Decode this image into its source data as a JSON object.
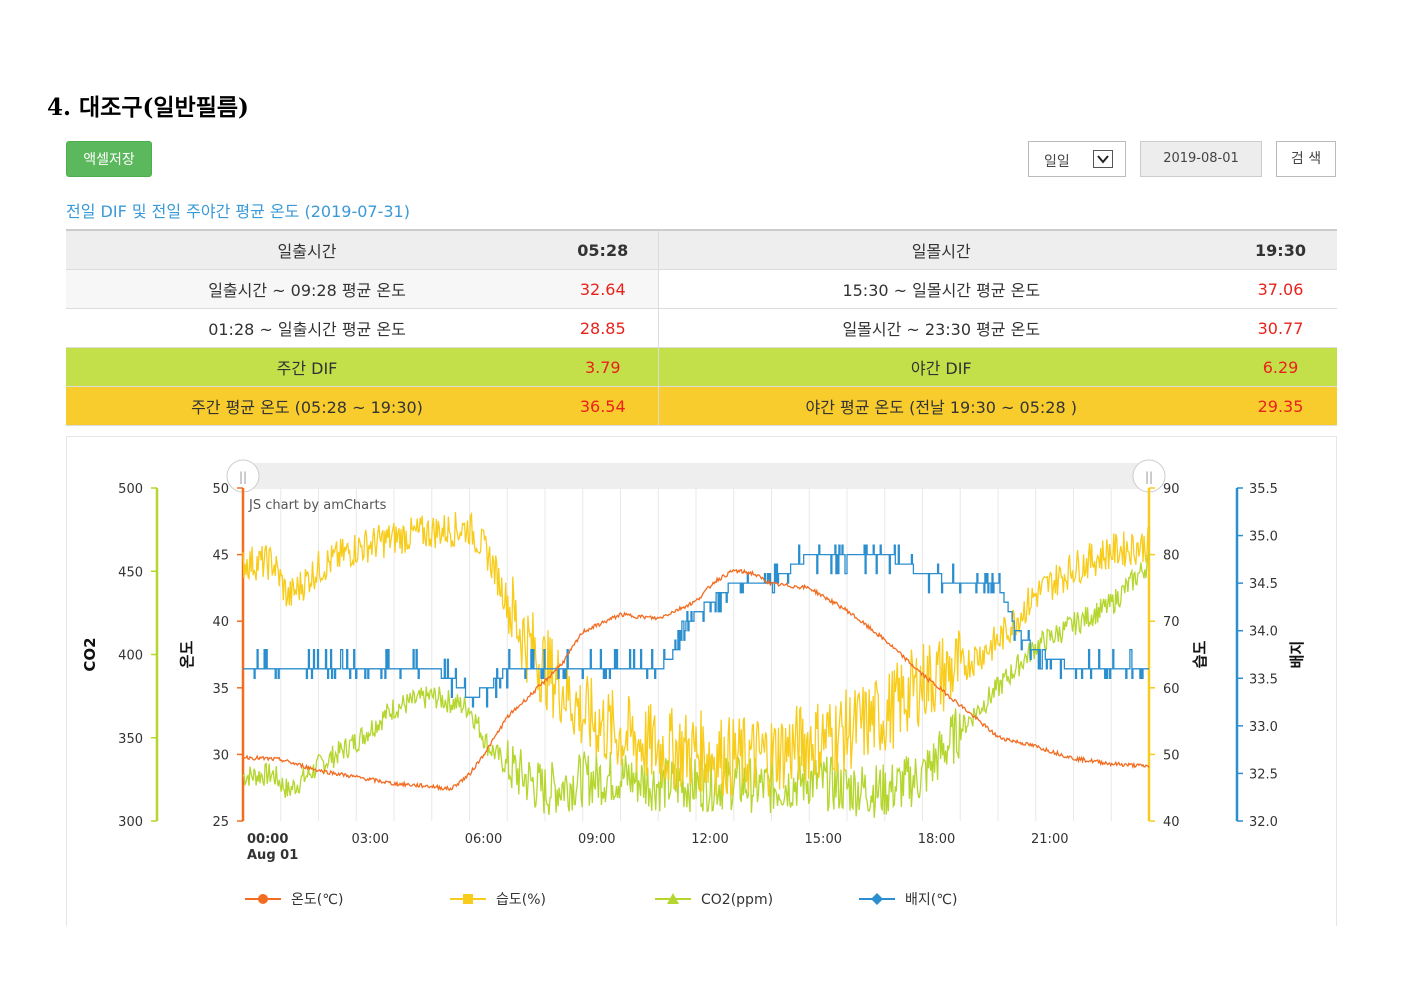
{
  "page": {
    "heading": "4.  대조구(일반필름)",
    "excel_button": "액셀저장",
    "period_select": "일일",
    "date_value": "2019-08-01",
    "search_button": "검 색"
  },
  "summary": {
    "title": "전일 DIF 및 전일 주야간 평균 온도 (2019-07-31)",
    "rows": [
      {
        "left_label": "일출시간",
        "left_value": "05:28",
        "right_label": "일몰시간",
        "right_value": "19:30"
      },
      {
        "left_label": "일출시간 ~ 09:28 평균 온도",
        "left_value": "32.64",
        "right_label": "15:30 ~ 일몰시간 평균 온도",
        "right_value": "37.06"
      },
      {
        "left_label": "01:28 ~ 일출시간 평균 온도",
        "left_value": "28.85",
        "right_label": "일몰시간 ~ 23:30 평균 온도",
        "right_value": "30.77"
      },
      {
        "left_label": "주간 DIF",
        "left_value": "3.79",
        "right_label": "야간 DIF",
        "right_value": "6.29"
      },
      {
        "left_label": "주간 평균 온도 (05:28 ~ 19:30)",
        "left_value": "36.54",
        "right_label": "야간 평균 온도 (전날 19:30 ~ 05:28 )",
        "right_value": "29.35"
      }
    ],
    "colors": {
      "header": "#eeeeee",
      "dif_row": "#c3e04a",
      "avg_row": "#f8cc2d",
      "value_text": "#e8221b"
    }
  },
  "chart_data": {
    "type": "line",
    "credit": "JS chart by amCharts",
    "x_ticks": [
      "00:00",
      "03:00",
      "06:00",
      "09:00",
      "12:00",
      "15:00",
      "18:00",
      "21:00"
    ],
    "x_first_date": "Aug 01",
    "xlim_hours": [
      0,
      24
    ],
    "axes": {
      "co2": {
        "label": "CO2",
        "range": [
          300,
          500
        ],
        "ticks": [
          300,
          350,
          400,
          450,
          500
        ],
        "color": "#b5d62e"
      },
      "temp": {
        "label": "온도",
        "range": [
          25,
          50
        ],
        "ticks": [
          25,
          30,
          35,
          40,
          45,
          50
        ],
        "color": "#f26c21"
      },
      "humidity": {
        "label": "습도",
        "range": [
          40,
          90
        ],
        "ticks": [
          40,
          50,
          60,
          70,
          80,
          90
        ],
        "color": "#f8cc1b"
      },
      "medium": {
        "label": "배지",
        "range": [
          32.0,
          35.5
        ],
        "ticks": [
          "32.0",
          "32.5",
          "33.0",
          "33.5",
          "34.0",
          "34.5",
          "35.0",
          "35.5"
        ],
        "color": "#2b8fcf"
      }
    },
    "series": [
      {
        "name": "온도(℃)",
        "axis": "temp",
        "color": "#f26c21",
        "hours": [
          0,
          1,
          2,
          3,
          4,
          5,
          5.5,
          6,
          6.5,
          7,
          8,
          8.5,
          9,
          10,
          11,
          12,
          12.5,
          13,
          13.5,
          14,
          15,
          16,
          17,
          18,
          19,
          20,
          21,
          22,
          23,
          24
        ],
        "values": [
          29.8,
          29.6,
          28.8,
          28.3,
          27.8,
          27.6,
          27.4,
          28.5,
          30.5,
          32.8,
          35.5,
          37.0,
          39.2,
          40.5,
          40.2,
          41.5,
          43.0,
          43.8,
          43.6,
          42.8,
          42.5,
          40.8,
          38.6,
          36.0,
          33.7,
          31.3,
          30.6,
          29.7,
          29.3,
          29.1
        ]
      },
      {
        "name": "습도(%)",
        "axis": "humidity",
        "color": "#f8cc1b",
        "hours": [
          0,
          0.8,
          1.2,
          2,
          3,
          4,
          5,
          6,
          6.5,
          7,
          7.5,
          8,
          8.5,
          9,
          10,
          11,
          12,
          13,
          14,
          15,
          16,
          17,
          18,
          19,
          20,
          21,
          22,
          23,
          24
        ],
        "values": [
          78.8,
          78.8,
          73.5,
          78.0,
          81.0,
          82.5,
          83.5,
          84.0,
          80.0,
          73.0,
          67.0,
          63.0,
          60.0,
          56.0,
          53.0,
          51.0,
          50.5,
          49.5,
          50.0,
          52.0,
          53.5,
          56.0,
          61.0,
          63.0,
          67.0,
          74.0,
          78.0,
          80.5,
          81.5
        ]
      },
      {
        "name": "CO2(ppm)",
        "axis": "co2",
        "color": "#b5d62e",
        "hours": [
          0,
          0.8,
          1.2,
          2,
          3,
          4,
          5,
          6,
          6.5,
          7,
          8,
          9,
          10,
          11,
          12,
          13,
          14,
          15,
          16,
          17,
          18,
          19,
          20,
          21,
          22,
          23,
          24
        ],
        "values": [
          327,
          328,
          318,
          333,
          348,
          368,
          375,
          368,
          345,
          333,
          318,
          325,
          327,
          322,
          322,
          323,
          320,
          325,
          320,
          318,
          327,
          355,
          380,
          405,
          418,
          430,
          455
        ]
      },
      {
        "name": "배지(℃)",
        "axis": "medium",
        "color": "#2b8fcf",
        "hours": [
          0,
          1,
          2,
          3,
          4,
          5,
          5.5,
          6,
          6.5,
          7,
          8,
          9,
          10,
          11,
          11.5,
          12,
          13,
          14,
          15,
          16,
          17,
          18,
          19,
          20,
          20.5,
          21,
          22,
          23,
          24
        ],
        "values": [
          33.6,
          33.6,
          33.6,
          33.6,
          33.6,
          33.6,
          33.5,
          33.3,
          33.4,
          33.6,
          33.6,
          33.6,
          33.6,
          33.6,
          33.8,
          34.2,
          34.5,
          34.5,
          34.8,
          34.8,
          34.8,
          34.6,
          34.5,
          34.5,
          34.0,
          33.8,
          33.6,
          33.6,
          33.6
        ]
      }
    ]
  }
}
